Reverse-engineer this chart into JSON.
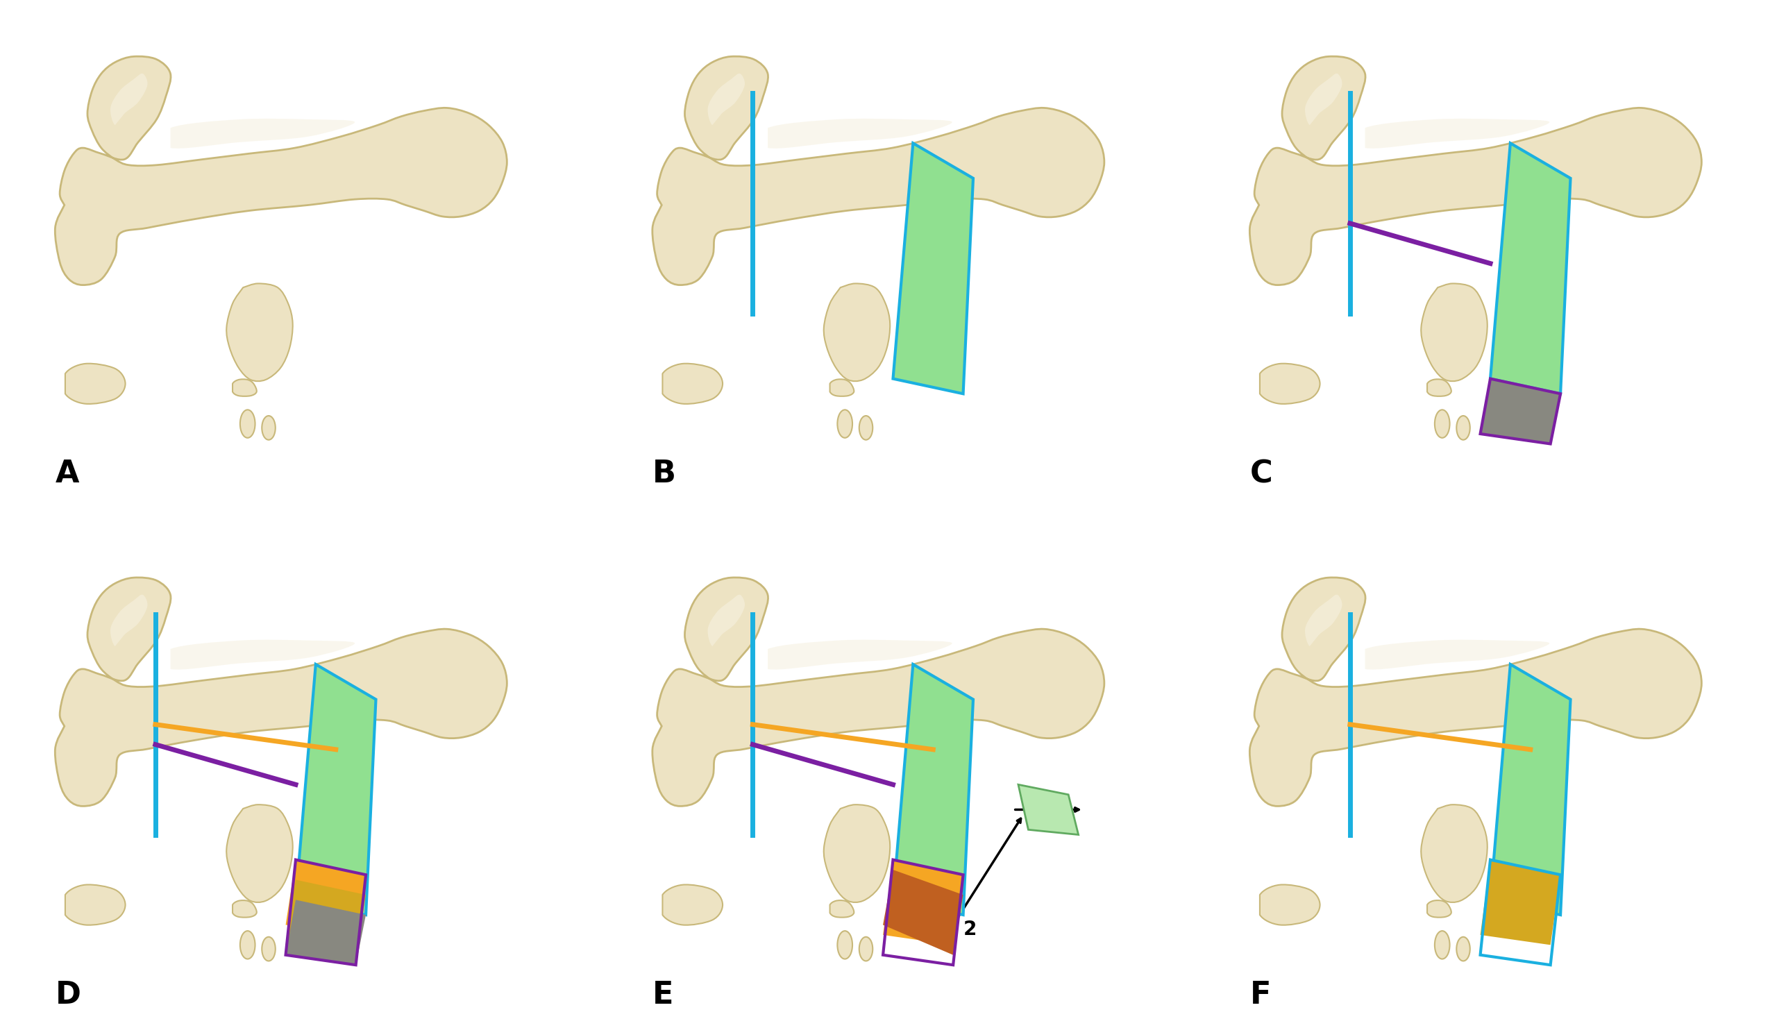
{
  "bg_color": "#ffffff",
  "bone_fill": "#ede3c3",
  "bone_edge": "#c8b87a",
  "bone_light": "#f5efdc",
  "bone_shadow": "#d4c49a",
  "cyan": "#1ab0e0",
  "purple": "#7b1fa2",
  "orange": "#f5a623",
  "green_fill": "#90e090",
  "green_edge": "#1ab0e0",
  "gray_fill": "#888880",
  "gray_edge": "#555550",
  "gold_fill": "#d4a820",
  "lw_cut": 5,
  "label_fs": 32,
  "labels": [
    "A",
    "B",
    "C",
    "D",
    "E",
    "F"
  ]
}
